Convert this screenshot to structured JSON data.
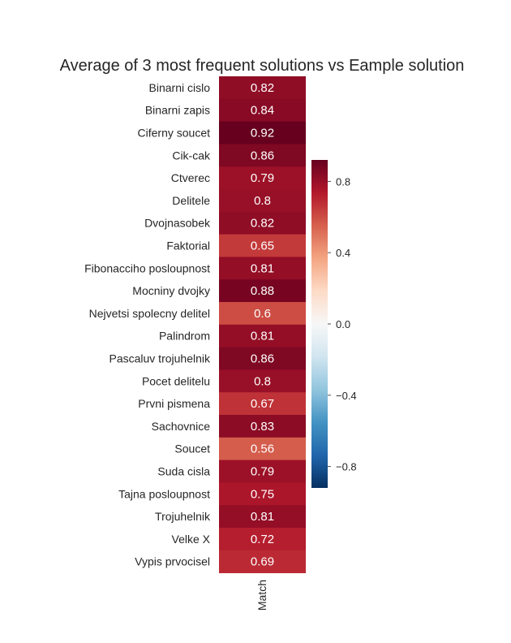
{
  "chart_data": {
    "type": "heatmap",
    "title": "Average of 3 most frequent solutions vs Eample solution",
    "columns": [
      "Match"
    ],
    "rows": [
      "Binarni cislo",
      "Binarni zapis",
      "Ciferny soucet",
      "Cik-cak",
      "Ctverec",
      "Delitele",
      "Dvojnasobek",
      "Faktorial",
      "Fibonacciho posloupnost",
      "Mocniny dvojky",
      "Nejvetsi spolecny delitel",
      "Palindrom",
      "Pascaluv trojuhelnik",
      "Pocet delitelu",
      "Prvni pismena",
      "Sachovnice",
      "Soucet",
      "Suda cisla",
      "Tajna posloupnost",
      "Trojuhelnik",
      "Velke X",
      "Vypis prvocisel"
    ],
    "values": [
      0.82,
      0.84,
      0.92,
      0.86,
      0.79,
      0.8,
      0.82,
      0.65,
      0.81,
      0.88,
      0.6,
      0.81,
      0.86,
      0.8,
      0.67,
      0.83,
      0.56,
      0.79,
      0.75,
      0.81,
      0.72,
      0.69
    ],
    "value_labels": [
      "0.82",
      "0.84",
      "0.92",
      "0.86",
      "0.79",
      "0.8",
      "0.82",
      "0.65",
      "0.81",
      "0.88",
      "0.6",
      "0.81",
      "0.86",
      "0.8",
      "0.67",
      "0.83",
      "0.56",
      "0.79",
      "0.75",
      "0.81",
      "0.72",
      "0.69"
    ],
    "colorbar": {
      "vmin": -0.92,
      "vmax": 0.92,
      "ticks": [
        0.8,
        0.4,
        0.0,
        -0.4,
        -0.8
      ],
      "tick_labels": [
        "0.8",
        "0.4",
        "0.0",
        "−0.4",
        "−0.8"
      ],
      "colormap": "RdBu_r"
    },
    "grid": false
  }
}
